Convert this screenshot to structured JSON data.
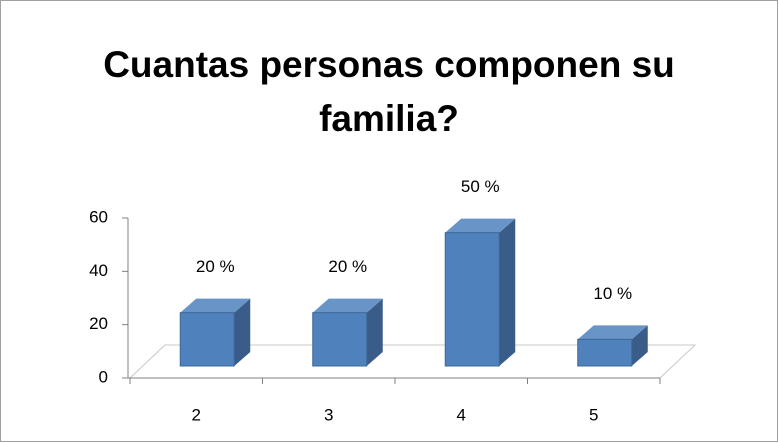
{
  "chart_data": {
    "type": "bar3d",
    "title": "Cuantas personas componen su familia?",
    "categories": [
      "2",
      "3",
      "4",
      "5"
    ],
    "values": [
      20,
      20,
      50,
      10
    ],
    "value_labels": [
      "20 %",
      "20 %",
      "50 %",
      "10 %"
    ],
    "color": "#4f81bd",
    "ylim": [
      0,
      60
    ],
    "yticks": [
      0,
      20,
      40,
      60
    ]
  }
}
